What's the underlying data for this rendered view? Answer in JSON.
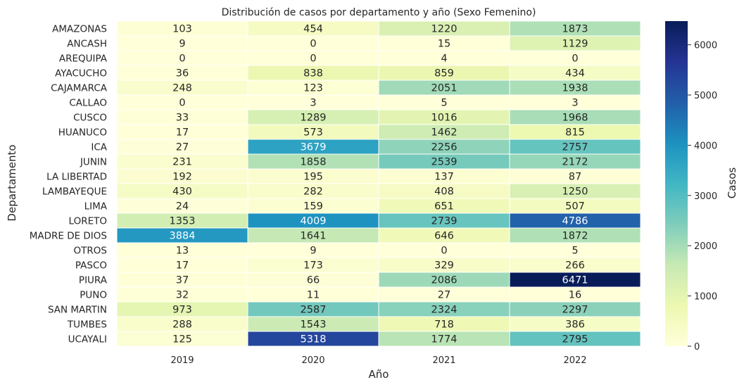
{
  "chart_data": {
    "type": "heatmap",
    "title": "Distribución de casos por departamento y año (Sexo Femenino)",
    "xlabel": "Año",
    "ylabel": "Departamento",
    "colorbar_label": "Casos",
    "colormap": "YlGnBu",
    "vmin": 0,
    "vmax": 6471,
    "colorbar_ticks": [
      0,
      1000,
      2000,
      3000,
      4000,
      5000,
      6000
    ],
    "columns": [
      "2019",
      "2020",
      "2021",
      "2022"
    ],
    "rows": [
      "AMAZONAS",
      "ANCASH",
      "AREQUIPA",
      "AYACUCHO",
      "CAJAMARCA",
      "CALLAO",
      "CUSCO",
      "HUANUCO",
      "ICA",
      "JUNIN",
      "LA LIBERTAD",
      "LAMBAYEQUE",
      "LIMA",
      "LORETO",
      "MADRE DE DIOS",
      "OTROS",
      "PASCO",
      "PIURA",
      "PUNO",
      "SAN MARTIN",
      "TUMBES",
      "UCAYALI"
    ],
    "values": [
      [
        103,
        454,
        1220,
        1873
      ],
      [
        9,
        0,
        15,
        1129
      ],
      [
        0,
        0,
        4,
        0
      ],
      [
        36,
        838,
        859,
        434
      ],
      [
        248,
        123,
        2051,
        1938
      ],
      [
        0,
        3,
        5,
        3
      ],
      [
        33,
        1289,
        1016,
        1968
      ],
      [
        17,
        573,
        1462,
        815
      ],
      [
        27,
        3679,
        2256,
        2757
      ],
      [
        231,
        1858,
        2539,
        2172
      ],
      [
        192,
        195,
        137,
        87
      ],
      [
        430,
        282,
        408,
        1250
      ],
      [
        24,
        159,
        651,
        507
      ],
      [
        1353,
        4009,
        2739,
        4786
      ],
      [
        3884,
        1641,
        646,
        1872
      ],
      [
        13,
        9,
        0,
        5
      ],
      [
        17,
        173,
        329,
        266
      ],
      [
        37,
        66,
        2086,
        6471
      ],
      [
        32,
        11,
        27,
        16
      ],
      [
        973,
        2587,
        2324,
        2297
      ],
      [
        288,
        1543,
        718,
        386
      ],
      [
        125,
        5318,
        1774,
        2795
      ]
    ]
  }
}
